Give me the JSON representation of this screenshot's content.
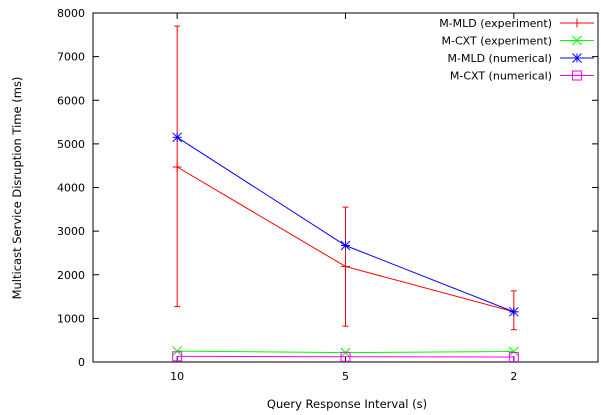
{
  "chart_data": {
    "type": "line",
    "title": "",
    "xlabel": "Query Response Interval (s)",
    "ylabel": "Multicast Service Disruption Time (ms)",
    "categories": [
      "10",
      "5",
      "2"
    ],
    "xlim": [
      0.5,
      3.5
    ],
    "ylim": [
      0,
      8000
    ],
    "yticks": [
      0,
      1000,
      2000,
      3000,
      4000,
      5000,
      6000,
      7000,
      8000
    ],
    "grid": false,
    "legend_position": "top-right",
    "series": [
      {
        "name": "M-MLD (experiment)",
        "color": "#ff0000",
        "marker": "plus",
        "values": [
          4470,
          2190,
          1150
        ],
        "error_low": [
          1270,
          820,
          740
        ],
        "error_high": [
          7700,
          3550,
          1630
        ]
      },
      {
        "name": "M-CXT (experiment)",
        "color": "#00ff00",
        "marker": "cross",
        "values": [
          250,
          215,
          240
        ]
      },
      {
        "name": "M-MLD (numerical)",
        "color": "#0000ff",
        "marker": "star",
        "values": [
          5150,
          2670,
          1150
        ]
      },
      {
        "name": "M-CXT (numerical)",
        "color": "#ff00ff",
        "marker": "square",
        "values": [
          130,
          120,
          115
        ]
      }
    ]
  }
}
